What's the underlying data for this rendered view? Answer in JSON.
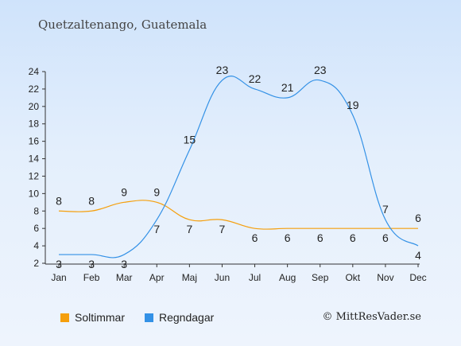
{
  "page": {
    "title": "Quetzaltenango, Guatemala",
    "credit": "© MittResVader.se"
  },
  "colors": {
    "sun": "#f59f0c",
    "rain": "#3391e6",
    "text": "#222222"
  },
  "chart_data": {
    "type": "line",
    "categories": [
      "Jan",
      "Feb",
      "Mar",
      "Apr",
      "Maj",
      "Jun",
      "Jul",
      "Aug",
      "Sep",
      "Okt",
      "Nov",
      "Dec"
    ],
    "yticks": [
      2,
      4,
      6,
      8,
      10,
      12,
      14,
      16,
      18,
      20,
      22,
      24
    ],
    "ylim": [
      2,
      24
    ],
    "legend_position": "bottom-left",
    "grid": false,
    "series": [
      {
        "name": "Soltimmar",
        "color": "#f59f0c",
        "values": [
          8,
          8,
          9,
          9,
          7,
          7,
          6,
          6,
          6,
          6,
          6,
          6
        ]
      },
      {
        "name": "Regndagar",
        "color": "#3391e6",
        "values": [
          3,
          3,
          3,
          7,
          15,
          23,
          22,
          21,
          23,
          19,
          7,
          4
        ]
      }
    ]
  }
}
